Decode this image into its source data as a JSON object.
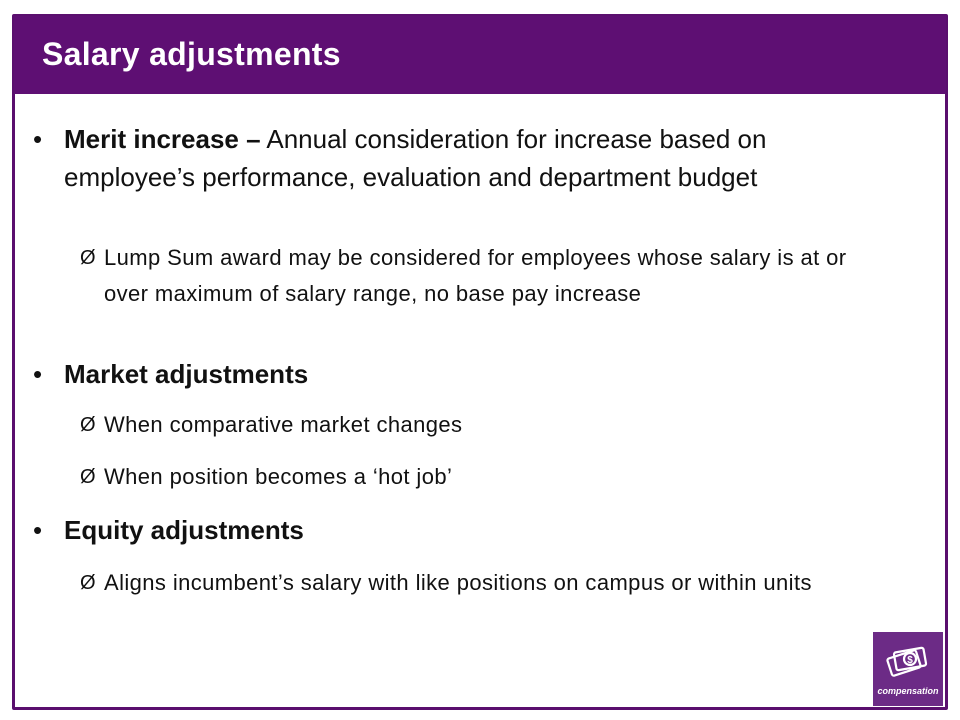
{
  "slide": {
    "title": "Salary adjustments"
  },
  "bullets": [
    {
      "marker": "•",
      "term": "Merit increase –",
      "desc": " Annual consideration for increase based on employee’s performance, evaluation and department budget",
      "subs": [
        {
          "marker": "Ø",
          "text": " Lump Sum award may be considered for employees whose salary is at or over maximum of salary range, no base pay increase"
        }
      ]
    },
    {
      "marker": "•",
      "term": "Market adjustments",
      "desc": "",
      "subs": [
        {
          "marker": "Ø",
          "text": "When comparative market changes"
        },
        {
          "marker": "Ø",
          "text": "When position becomes a ‘hot job’"
        }
      ]
    },
    {
      "marker": "•",
      "term": "Equity adjustments",
      "desc": "",
      "subs": [
        {
          "marker": "Ø",
          "text": "Aligns incumbent’s salary with like positions on campus or within units"
        }
      ]
    }
  ],
  "logo": {
    "label": "compensation",
    "icon": "money-icon",
    "color": "#6c2b86"
  },
  "theme": {
    "accent": "#5e0f73"
  }
}
